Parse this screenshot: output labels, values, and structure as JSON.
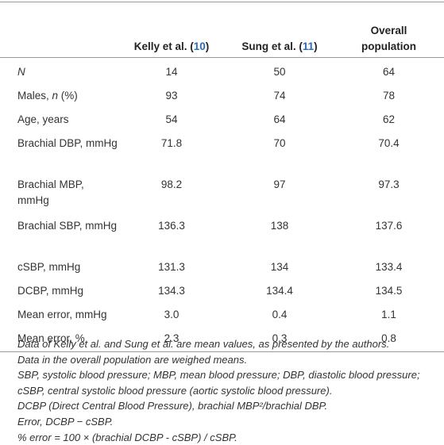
{
  "table": {
    "columns": [
      [
        "Kelly et al. (",
        "10",
        ")"
      ],
      [
        "Sung et al. (",
        "11",
        ")"
      ],
      [
        "Overall population"
      ]
    ],
    "rows": [
      {
        "label": [
          "N"
        ],
        "values": [
          "14",
          "50",
          "64"
        ]
      },
      {
        "label": [
          "Males, ",
          "n",
          " (%)"
        ],
        "values": [
          "93",
          "74",
          "78"
        ]
      },
      {
        "label": [
          "Age, years"
        ],
        "values": [
          "54",
          "64",
          "62"
        ]
      },
      {
        "label": [
          "Brachial DBP, mmHg"
        ],
        "values": [
          "71.8",
          "70",
          "70.4"
        ]
      },
      {
        "label": [
          "Brachial MBP, mmHg"
        ],
        "values": [
          "98.2",
          "97",
          "97.3"
        ]
      },
      {
        "label": [
          "Brachial SBP, mmHg"
        ],
        "values": [
          "136.3",
          "138",
          "137.6"
        ]
      },
      {
        "label": [
          "cSBP, mmHg"
        ],
        "values": [
          "131.3",
          "134",
          "133.4"
        ]
      },
      {
        "label": [
          "DCBP, mmHg"
        ],
        "values": [
          "134.3",
          "134.4",
          "134.5"
        ]
      },
      {
        "label": [
          "Mean error, mmHg"
        ],
        "values": [
          "3.0",
          "0.4",
          "1.1"
        ]
      },
      {
        "label": [
          "Mean error, %"
        ],
        "values": [
          "2.3",
          "0.3",
          "0.8"
        ]
      }
    ]
  },
  "notes": [
    "Data of Kelly et al. and Sung et al. are mean values, as presented by the authors.",
    "Data in the overall population are weighed means.",
    "SBP, systolic blood pressure; MBP, mean blood pressure; DBP, diastolic blood pressure;",
    "cSBP, central systolic blood pressure (aortic systolic blood pressure).",
    "DCBP (Direct Central Blood Pressure), brachial MBP²/brachial DBP.",
    "Error, DCBP − cSBP.",
    "% error = 100 × (brachial DCBP - cSBP) / cSBP."
  ]
}
